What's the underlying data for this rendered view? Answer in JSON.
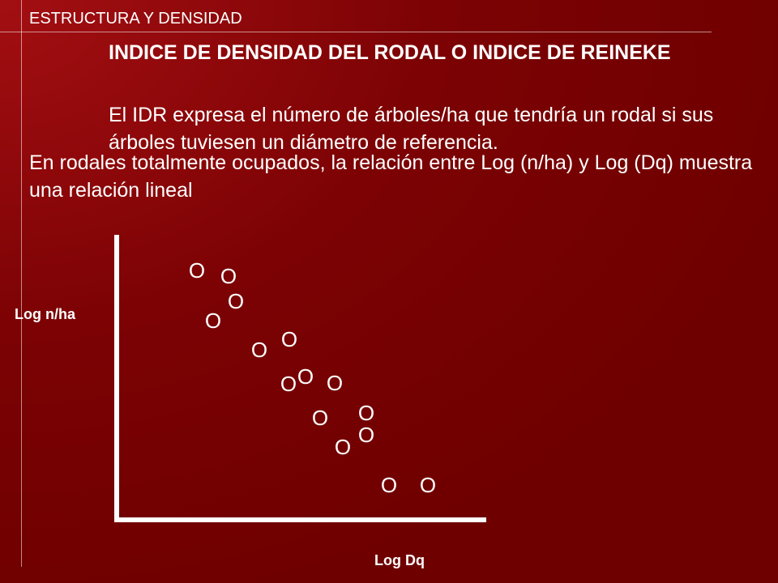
{
  "slide": {
    "section_title": "ESTRUCTURA Y DENSIDAD",
    "heading": "INDICE DE DENSIDAD DEL RODAL O INDICE DE REINEKE",
    "description": "El IDR expresa el número de árboles/ha que tendría un rodal si sus árboles tuviesen un diámetro de referencia.",
    "statement": "En rodales totalmente ocupados, la relación entre Log (n/ha) y Log (Dq) muestra una relación lineal"
  },
  "diagram": {
    "y_axis_label": "Log n/ha",
    "x_axis_label": "Log Dq",
    "marker_symbol": "O",
    "line_color": "#ffffff"
  }
}
